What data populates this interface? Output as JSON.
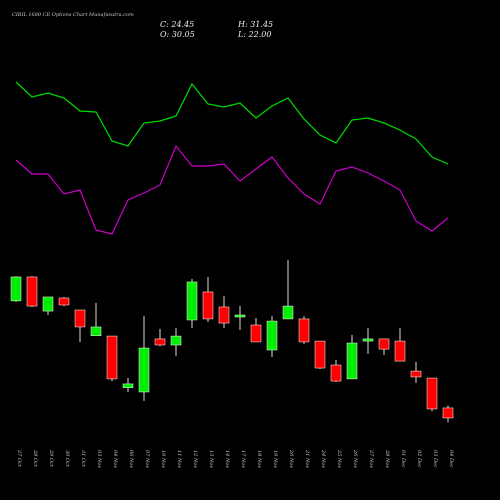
{
  "chart_data": {
    "type": "candlestick",
    "title": "CIBIL 1680 CE Options Chart Munafasutra.com",
    "ohlc_labels": {
      "close": "C: 24.45",
      "high": "H: 31.45",
      "open": "O: 30.05",
      "low": "L: 22.00"
    },
    "categories": [
      "27 Oct",
      "28 Oct",
      "29 Oct",
      "30 Oct",
      "31 Oct",
      "03 Nov",
      "04 Nov",
      "06 Nov",
      "07 Nov",
      "10 Nov",
      "11 Nov",
      "12 Nov",
      "13 Nov",
      "14 Nov",
      "17 Nov",
      "18 Nov",
      "19 Nov",
      "20 Nov",
      "21 Nov",
      "24 Nov",
      "25 Nov",
      "26 Nov",
      "27 Nov",
      "28 Nov",
      "01 Dec",
      "02 Dec",
      "03 Dec",
      "04 Dec"
    ],
    "open": [
      90,
      103.4,
      84.3,
      91.6,
      84.9,
      70.5,
      70.3,
      41.4,
      39,
      68.7,
      65.3,
      79.3,
      95,
      86.6,
      81,
      76.5,
      62.5,
      79.9,
      79.9,
      67.5,
      54.1,
      46.3,
      67.5,
      68.7,
      67.5,
      50.7,
      46.8,
      30.05
    ],
    "high": [
      103.9,
      103.9,
      92.2,
      92.2,
      84.9,
      88.8,
      70.3,
      46.8,
      81.5,
      74.3,
      74.8,
      102.3,
      103.4,
      92.7,
      87.1,
      80.4,
      81.5,
      112.9,
      81.5,
      67.5,
      56.9,
      70.9,
      74.8,
      68.7,
      74.8,
      55.8,
      46.8,
      31.45
    ],
    "low": [
      89.4,
      86.6,
      82.1,
      87.1,
      67,
      70.5,
      45.1,
      39,
      34,
      64.7,
      59.2,
      74.8,
      78.2,
      74.8,
      73.7,
      67,
      58.6,
      79.9,
      65.9,
      51.9,
      44.6,
      46.3,
      60.3,
      59.7,
      56.3,
      44,
      28.3,
      22
    ],
    "close": [
      103.4,
      87.1,
      92.2,
      87.7,
      75.4,
      75.4,
      46.3,
      43.5,
      63.6,
      65.3,
      70.3,
      100.6,
      79.9,
      77.6,
      82.1,
      67,
      78.7,
      87.1,
      67,
      52.4,
      45.1,
      66.4,
      68.7,
      63,
      56.3,
      47.4,
      29.5,
      24.45
    ],
    "up_color": "#00ee00",
    "down_color": "#ff0000",
    "ylim": [
      12.1,
      118.5
    ],
    "indicators": {
      "ylim": [
        0,
        190
      ],
      "series": [
        {
          "color": "#00dd00",
          "values": [
            178,
            163,
            167,
            162,
            149,
            148,
            119,
            114,
            137,
            139,
            144,
            176,
            156,
            153,
            157,
            142,
            154,
            162,
            141,
            125,
            117,
            140,
            142,
            137,
            130,
            121,
            103,
            96
          ]
        },
        {
          "color": "#cc00cc",
          "values": [
            100,
            86,
            86,
            66,
            70,
            30,
            26,
            60,
            67,
            75,
            114,
            94,
            94,
            96,
            79,
            91,
            103,
            82,
            66,
            56,
            89,
            93,
            87,
            79,
            70,
            39,
            29,
            42
          ]
        }
      ]
    }
  }
}
